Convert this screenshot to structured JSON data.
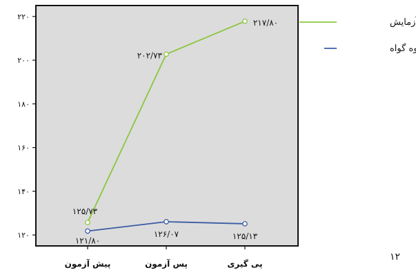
{
  "chart_data": {
    "type": "line",
    "categories": [
      "پیش آزمون",
      "پس آزمون",
      "پی گیری"
    ],
    "ylim": [
      115,
      225
    ],
    "y_ticks": [
      {
        "value": 120,
        "label": "۱۲۰"
      },
      {
        "value": 140,
        "label": "۱۴۰"
      },
      {
        "value": 160,
        "label": "۱۶۰"
      },
      {
        "value": 180,
        "label": "۱۸۰"
      },
      {
        "value": 200,
        "label": "۲۰۰"
      },
      {
        "value": 220,
        "label": "۲۲۰"
      }
    ],
    "grid": false,
    "legend_position": "right",
    "series": [
      {
        "name": "گروه آزمایش",
        "color": "#8cc63f",
        "values": [
          125.73,
          202.73,
          217.8
        ],
        "value_labels": [
          "۱۲۵/۷۳",
          "۲۰۲/۷۳",
          "۲۱۷/۸۰"
        ]
      },
      {
        "name": "گروه گواه",
        "color": "#3b5ba5",
        "values": [
          121.8,
          126.07,
          125.13
        ],
        "value_labels": [
          "۱۲۱/۸۰",
          "۱۲۶/۰۷",
          "۱۲۵/۱۳"
        ]
      }
    ],
    "plot_background": "#dcdcdc"
  },
  "page_number": "۱۲"
}
